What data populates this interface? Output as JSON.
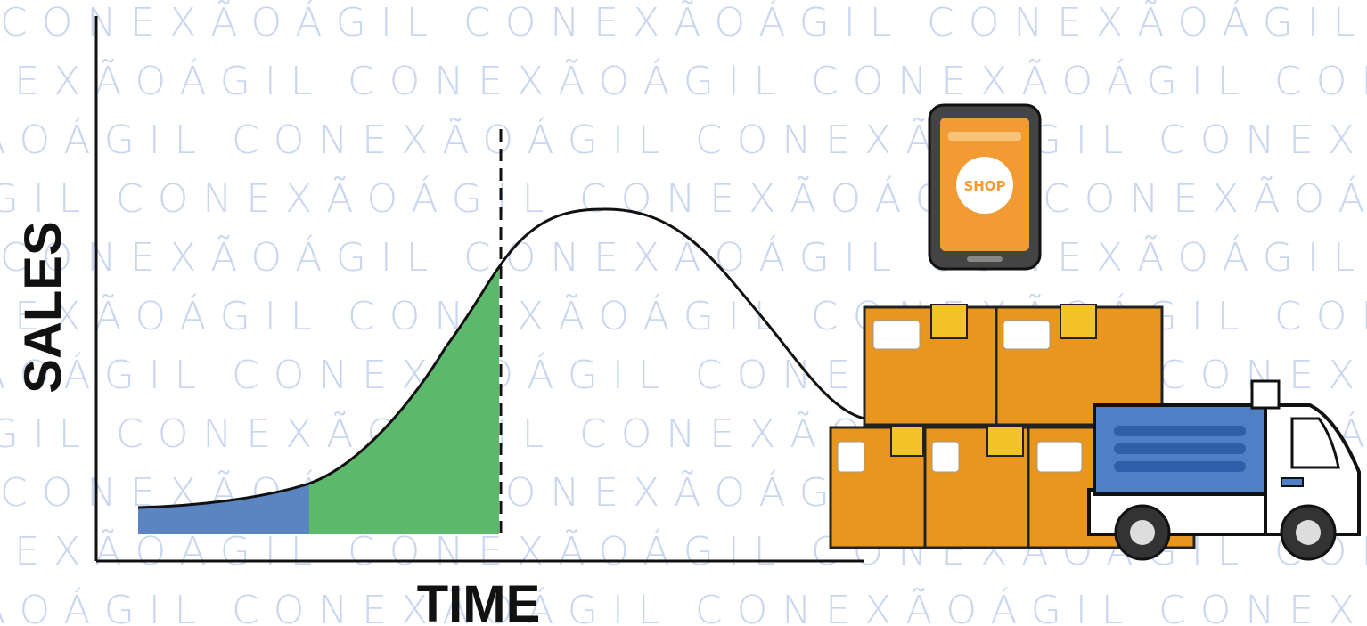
{
  "watermark": "CONEXÃOÁGIL",
  "axes": {
    "y_label": "SALES",
    "x_label": "TIME"
  },
  "phone": {
    "label": "SHOP"
  }
}
